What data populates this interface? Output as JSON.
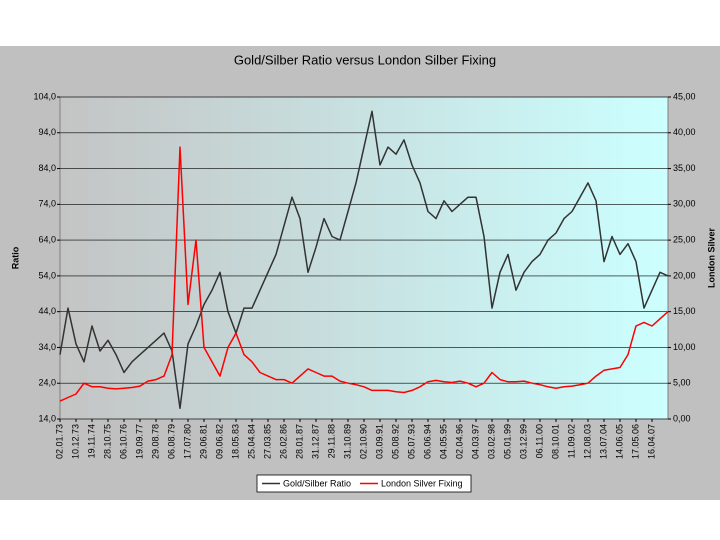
{
  "chart_data": {
    "type": "line",
    "title": "Gold/Silber Ratio versus London Silber Fixing",
    "y_label": "Ratio",
    "y2_label": "London Silver",
    "categories": [
      "02.01.73",
      null,
      "10.12.73",
      null,
      "19.11.74",
      null,
      "28.10.75",
      null,
      "06.10.76",
      null,
      "19.09.77",
      null,
      "29.08.78",
      null,
      "06.08.79",
      null,
      "17.07.80",
      null,
      "29.06.81",
      null,
      "09.06.82",
      null,
      "18.05.83",
      null,
      "25.04.84",
      null,
      "27.03.85",
      null,
      "26.02.86",
      null,
      "28.01.87",
      null,
      "31.12.87",
      null,
      "29.11.88",
      null,
      "31.10.89",
      null,
      "02.10.90",
      null,
      "03.09.91",
      null,
      "05.08.92",
      null,
      "05.07.93",
      null,
      "06.06.94",
      null,
      "04.05.95",
      null,
      "02.04.96",
      null,
      "04.03.97",
      null,
      "03.02.98",
      null,
      "05.01.99",
      null,
      "03.12.99",
      null,
      "06.11.00",
      null,
      "08.10.01",
      null,
      "11.09.02",
      null,
      "12.08.03",
      null,
      "13.07.04",
      null,
      "14.06.05",
      null,
      "17.05.06",
      null,
      "16.04.07",
      null,
      null
    ],
    "series": [
      {
        "name": "Gold/Silber Ratio",
        "color": "#333333",
        "values": [
          32,
          45,
          35,
          30,
          40,
          33,
          36,
          32,
          27,
          30,
          32,
          34,
          36,
          38,
          33,
          17,
          35,
          40,
          46,
          50,
          55,
          44,
          38,
          45,
          45,
          50,
          55,
          60,
          68,
          76,
          70,
          55,
          62,
          70,
          65,
          64,
          72,
          80,
          90,
          100,
          85,
          90,
          88,
          92,
          85,
          80,
          72,
          70,
          75,
          72,
          74,
          76,
          76,
          65,
          45,
          55,
          60,
          50,
          55,
          58,
          60,
          64,
          66,
          70,
          72,
          76,
          80,
          75,
          58,
          65,
          60,
          63,
          58,
          45,
          50,
          55,
          54
        ]
      },
      {
        "name": "London Silver Fixing",
        "color": "#ff0000",
        "axis": "y2",
        "values": [
          2.5,
          3,
          3.5,
          5,
          4.5,
          4.5,
          4.3,
          4.2,
          4.3,
          4.4,
          4.6,
          5.3,
          5.5,
          6,
          9,
          38,
          16,
          25,
          10,
          8,
          6,
          10,
          12,
          9,
          8,
          6.5,
          6,
          5.5,
          5.5,
          5,
          6,
          7,
          6.5,
          6,
          6,
          5.3,
          5,
          4.8,
          4.5,
          4,
          4,
          4,
          3.8,
          3.7,
          4,
          4.5,
          5.2,
          5.4,
          5.2,
          5.1,
          5.3,
          5,
          4.5,
          5,
          6.5,
          5.5,
          5.2,
          5.2,
          5.3,
          5,
          4.8,
          4.5,
          4.3,
          4.5,
          4.6,
          4.8,
          5,
          6,
          6.8,
          7,
          7.2,
          9,
          13,
          13.5,
          13,
          14,
          15
        ]
      }
    ],
    "ylim": [
      14,
      104
    ],
    "yticks": [
      {
        "value": 14,
        "label": "14,0"
      },
      {
        "value": 24,
        "label": "24,0"
      },
      {
        "value": 34,
        "label": "34,0"
      },
      {
        "value": 44,
        "label": "44,0"
      },
      {
        "value": 54,
        "label": "54,0"
      },
      {
        "value": 64,
        "label": "64,0"
      },
      {
        "value": 74,
        "label": "74,0"
      },
      {
        "value": 84,
        "label": "84,0"
      },
      {
        "value": 94,
        "label": "94,0"
      },
      {
        "value": 104,
        "label": "104,0"
      }
    ],
    "y2lim": [
      0,
      45
    ],
    "y2ticks": [
      {
        "value": 0,
        "label": "0,00"
      },
      {
        "value": 5,
        "label": "5,00"
      },
      {
        "value": 10,
        "label": "10,00"
      },
      {
        "value": 15,
        "label": "15,00"
      },
      {
        "value": 20,
        "label": "20,00"
      },
      {
        "value": 25,
        "label": "25,00"
      },
      {
        "value": 30,
        "label": "30,00"
      },
      {
        "value": 35,
        "label": "35,00"
      },
      {
        "value": 40,
        "label": "40,00"
      },
      {
        "value": 45,
        "label": "45,00"
      }
    ],
    "grid": true,
    "legend": "bottom"
  }
}
